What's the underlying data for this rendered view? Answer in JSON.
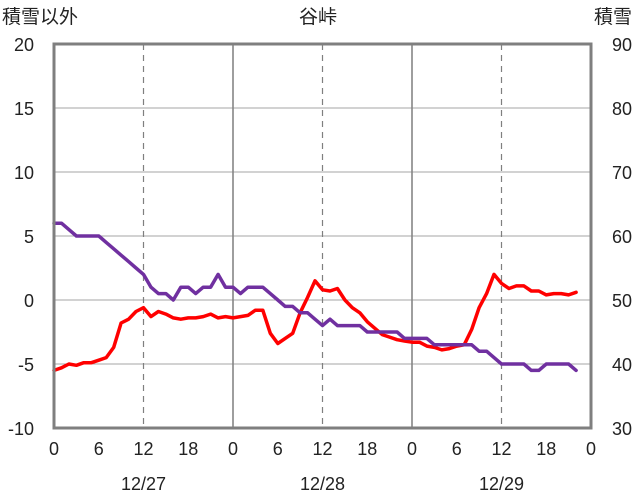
{
  "chart_data": {
    "type": "line",
    "title": "谷峠",
    "left_axis_label": "積雪以外",
    "right_axis_label": "積雪",
    "left_ylim": [
      -10,
      20
    ],
    "left_ticks": [
      "20",
      "15",
      "10",
      "5",
      "0",
      "-5",
      "-10"
    ],
    "right_ylim": [
      30,
      90
    ],
    "right_ticks": [
      "90",
      "80",
      "70",
      "60",
      "50",
      "40",
      "30"
    ],
    "x_range_hours": [
      0,
      72
    ],
    "x_tick_labels": [
      "0",
      "6",
      "12",
      "18",
      "0",
      "6",
      "12",
      "18",
      "0",
      "6",
      "12",
      "18",
      "0"
    ],
    "date_labels": [
      "12/27",
      "12/28",
      "12/29"
    ],
    "grid": true,
    "series": [
      {
        "color": "#ff0000",
        "axis": "left",
        "values": [
          -5.5,
          -5.3,
          -5.0,
          -5.1,
          -4.9,
          -4.9,
          -4.7,
          -4.5,
          -3.7,
          -1.8,
          -1.5,
          -0.9,
          -0.6,
          -1.3,
          -0.9,
          -1.1,
          -1.4,
          -1.5,
          -1.4,
          -1.4,
          -1.3,
          -1.1,
          -1.4,
          -1.3,
          -1.4,
          -1.3,
          -1.2,
          -0.8,
          -0.8,
          -2.6,
          -3.4,
          -3.0,
          -2.6,
          -1.0,
          0.2,
          1.5,
          0.8,
          0.7,
          0.9,
          0.0,
          -0.6,
          -1.0,
          -1.7,
          -2.2,
          -2.7,
          -2.9,
          -3.1,
          -3.2,
          -3.3,
          -3.3,
          -3.6,
          -3.7,
          -3.9,
          -3.8,
          -3.6,
          -3.5,
          -2.3,
          -0.6,
          0.5,
          2.0,
          1.3,
          0.9,
          1.1,
          1.1,
          0.7,
          0.7,
          0.4,
          0.5,
          0.5,
          0.4,
          0.6
        ]
      },
      {
        "color": "#7030a0",
        "axis": "right",
        "values": [
          62,
          62,
          61,
          60,
          60,
          60,
          60,
          59,
          58,
          57,
          56,
          55,
          54,
          52,
          51,
          51,
          50,
          52,
          52,
          51,
          52,
          52,
          54,
          52,
          52,
          51,
          52,
          52,
          52,
          51,
          50,
          49,
          49,
          48,
          48,
          47,
          46,
          47,
          46,
          46,
          46,
          46,
          45,
          45,
          45,
          45,
          45,
          44,
          44,
          44,
          44,
          43,
          43,
          43,
          43,
          43,
          43,
          42,
          42,
          41,
          40,
          40,
          40,
          40,
          39,
          39,
          40,
          40,
          40,
          40,
          39
        ]
      }
    ]
  }
}
